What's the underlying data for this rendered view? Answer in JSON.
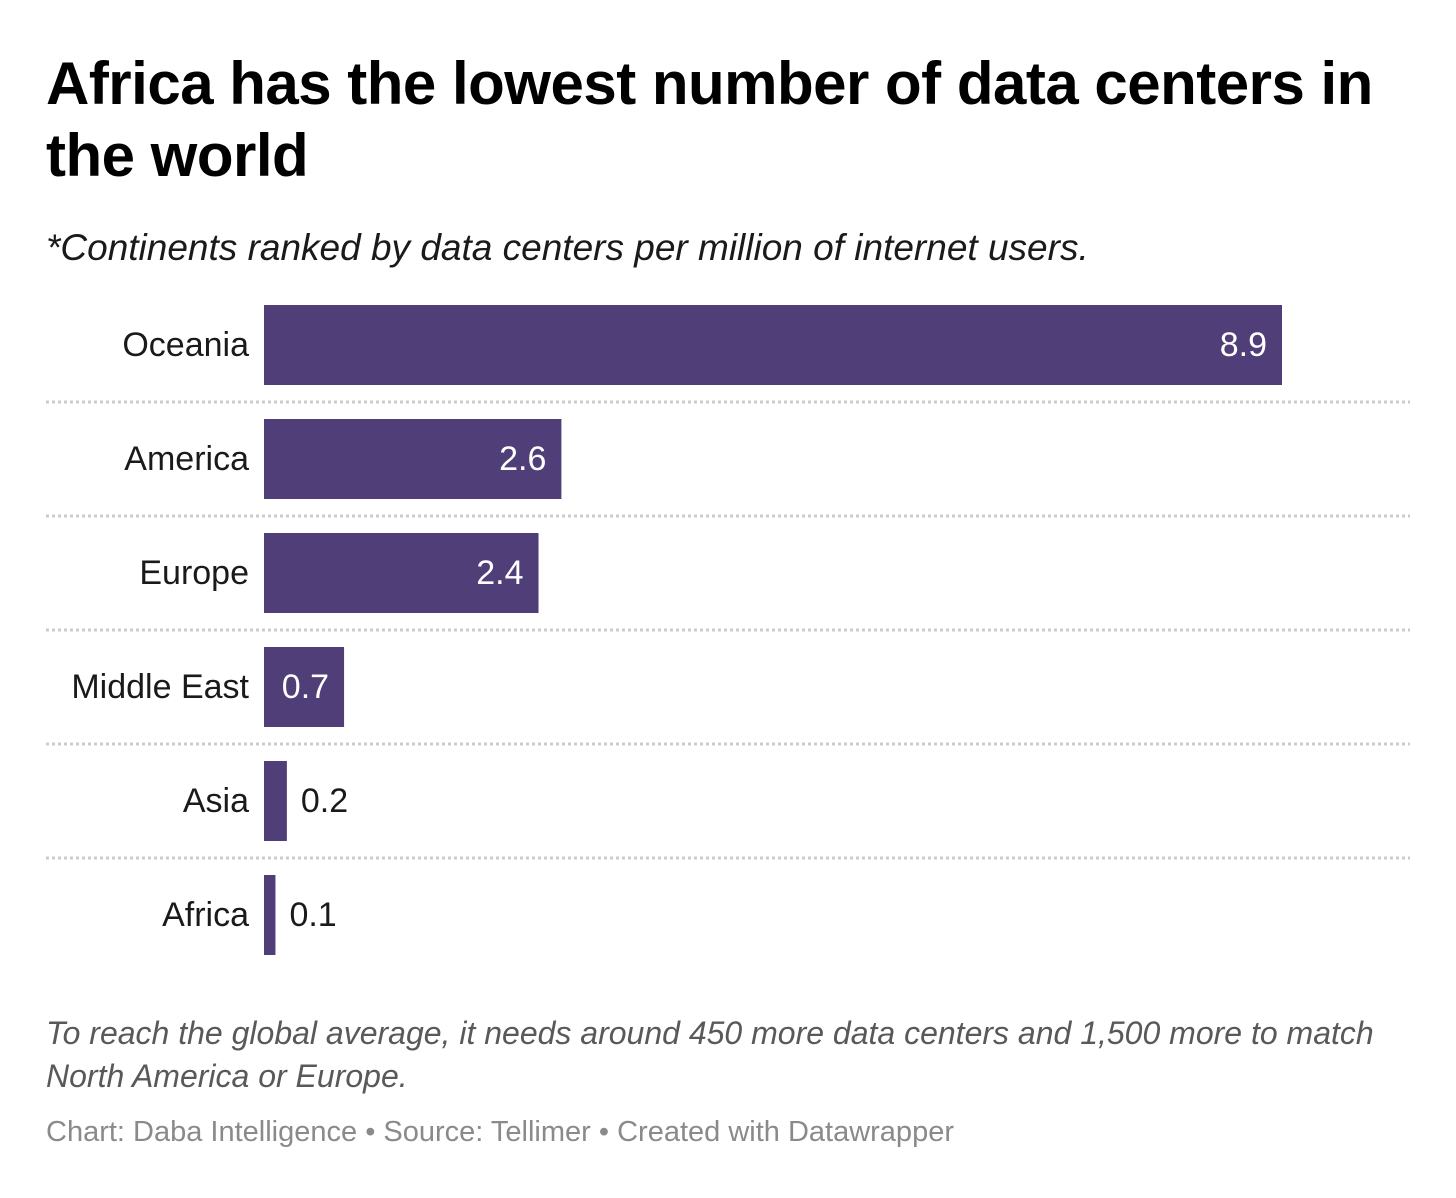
{
  "title": "Africa has the lowest number of data centers in the world",
  "subtitle": "*Continents ranked by data centers per million of internet users.",
  "note": "To reach the global average, it needs around 450 more data centers and 1,500 more to match North America or Europe.",
  "credits": {
    "chart": "Chart: Daba Intelligence",
    "source": "Source: Tellimer",
    "tool": "Created with Datawrapper",
    "separator": "•"
  },
  "colors": {
    "bar": "#4f3e77",
    "inside_label": "#ffffff",
    "outside_label": "#1a1a1a",
    "separator_line": "#cccccc"
  },
  "chart_data": {
    "type": "bar",
    "orientation": "horizontal",
    "categories": [
      "Oceania",
      "America",
      "Europe",
      "Middle East",
      "Asia",
      "Africa"
    ],
    "values": [
      8.9,
      2.6,
      2.4,
      0.7,
      0.2,
      0.1
    ],
    "value_labels": [
      "8.9",
      "2.6",
      "2.4",
      "0.7",
      "0.2",
      "0.1"
    ],
    "xlim": [
      0,
      8.9
    ],
    "grid": false,
    "row_separators": "dotted",
    "legend": "none"
  }
}
